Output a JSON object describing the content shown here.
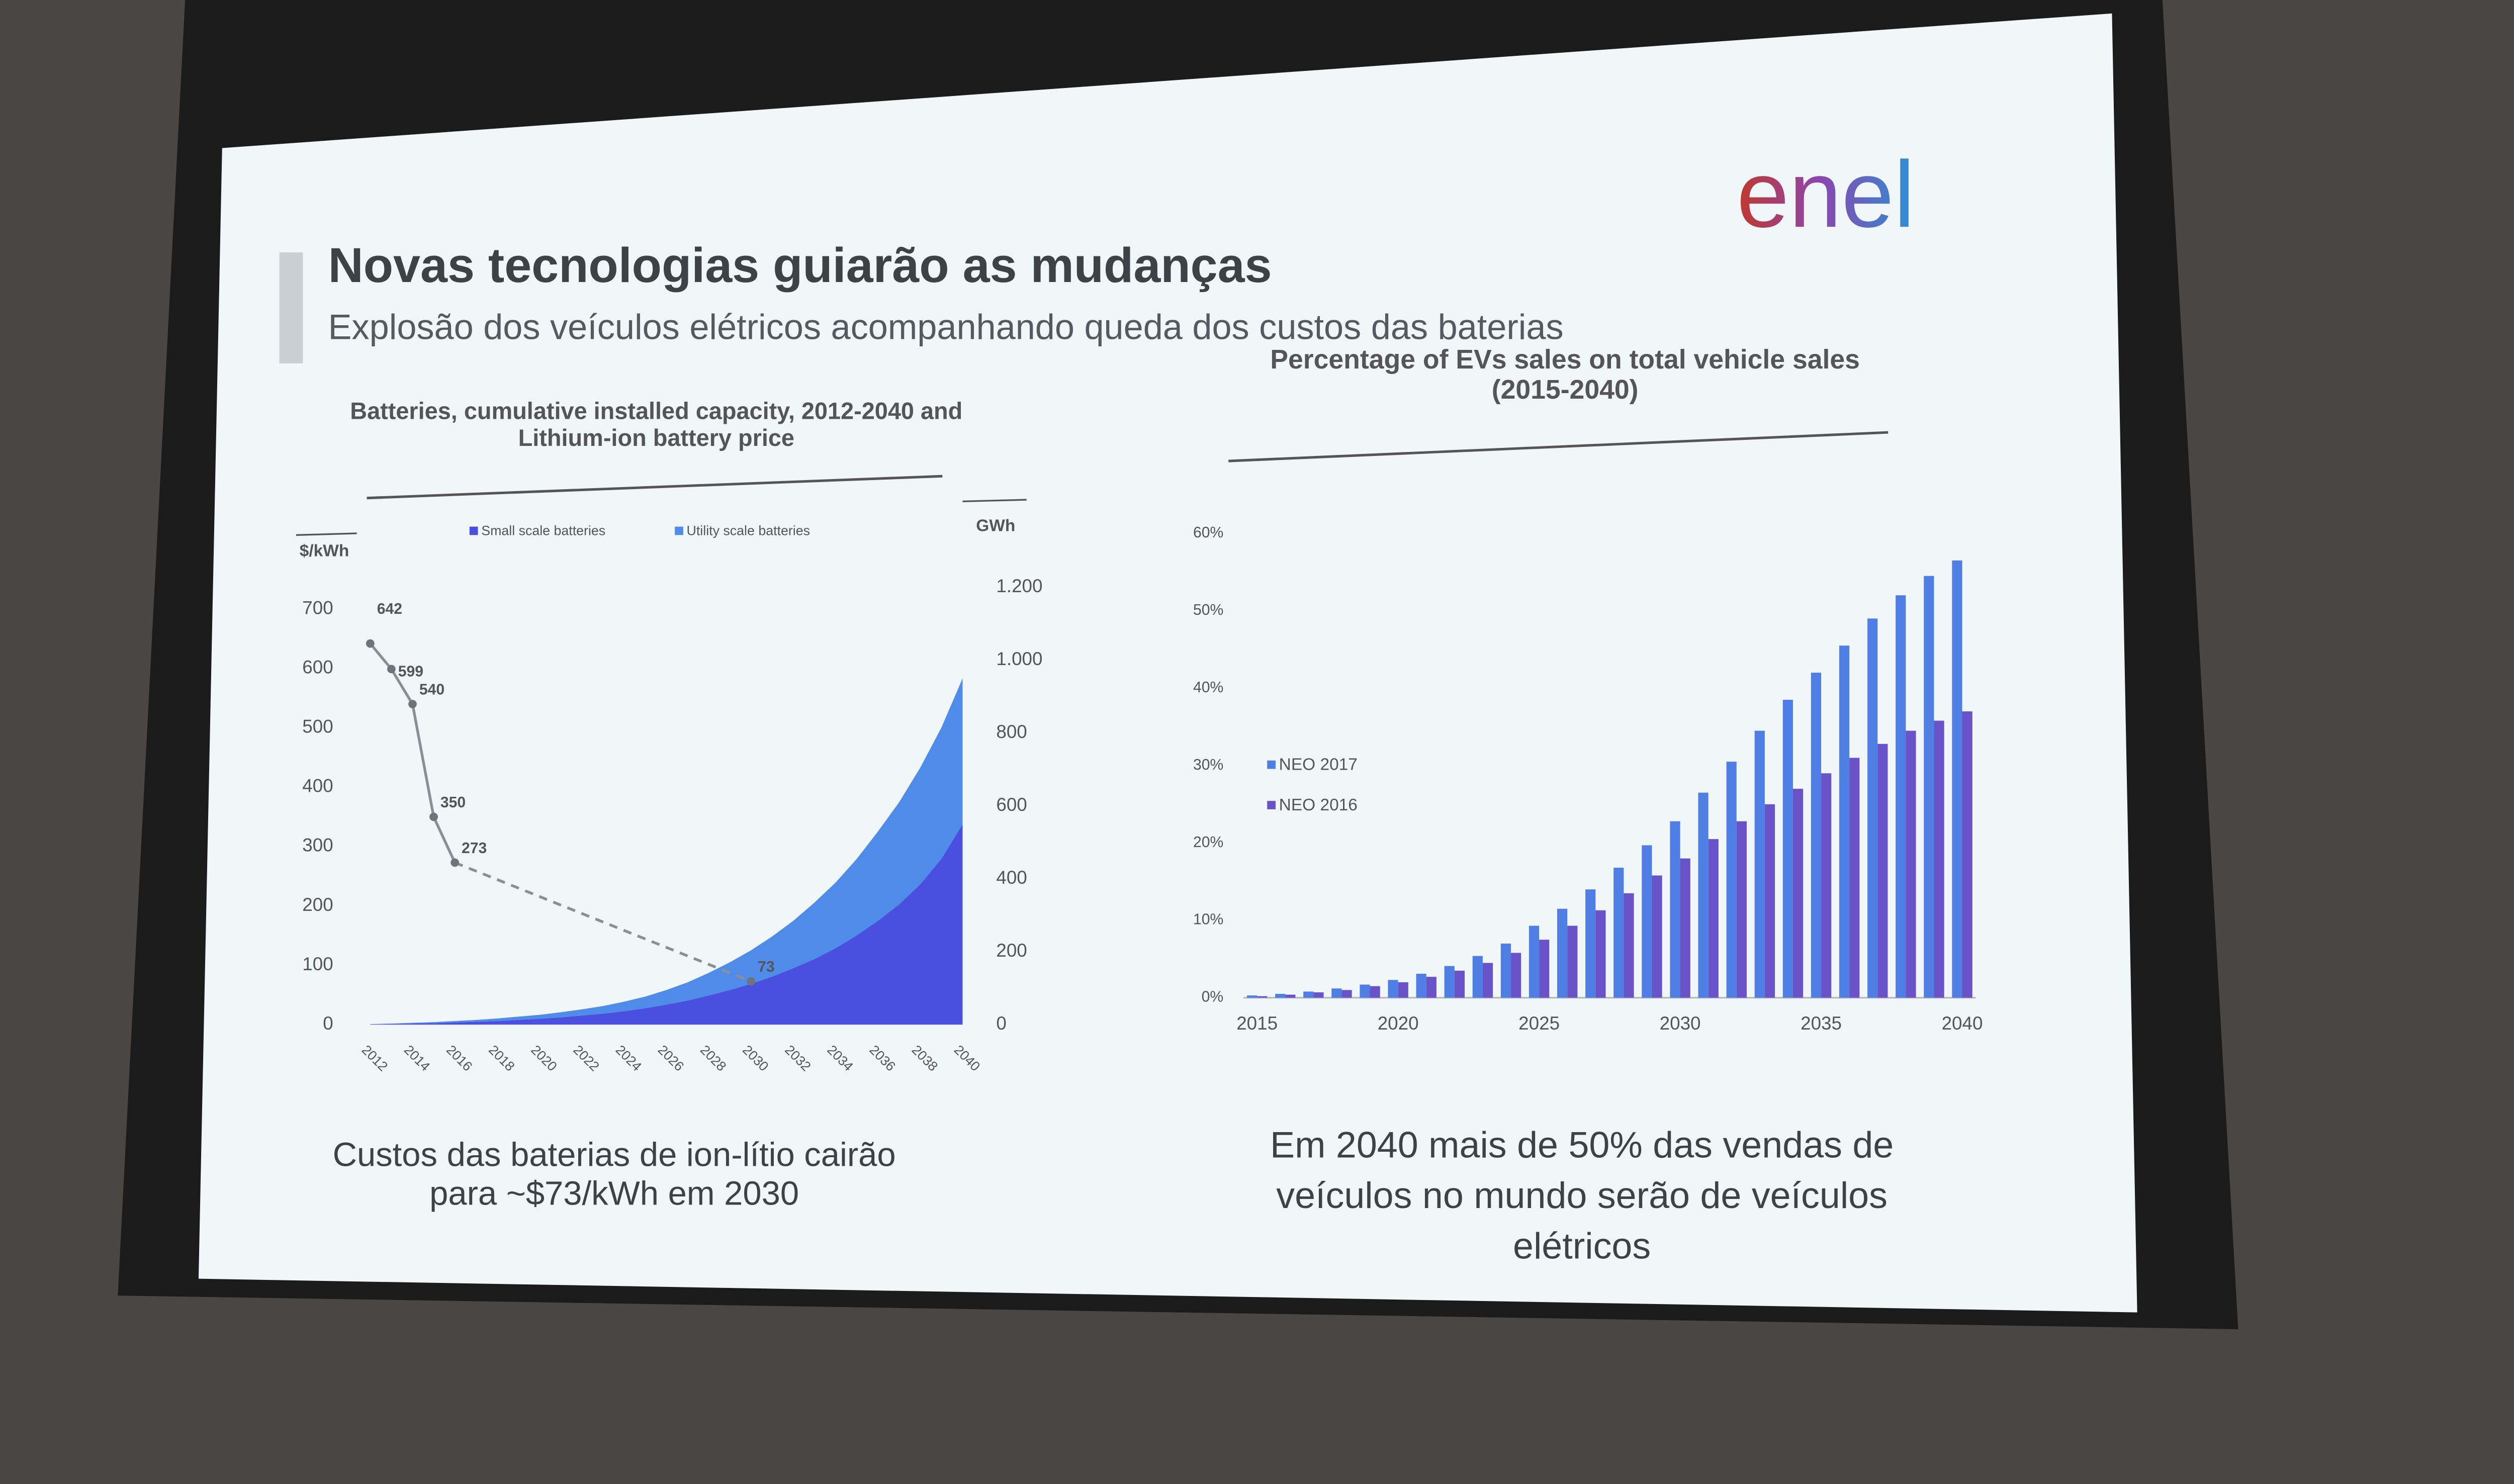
{
  "header": {
    "title": "Novas tecnologias guiarão as mudanças",
    "subtitle": "Explosão dos veículos elétricos acompanhando queda dos custos das baterias",
    "logo": "enel"
  },
  "captions": [
    "Custos das baterias de ion-lítio cairão para ~$73/kWh em 2030",
    "Em 2040 mais de 50% das vendas de veículos no mundo serão de veículos elétricos"
  ],
  "chart_data": [
    {
      "type": "area",
      "title": "Batteries, cumulative installed capacity, 2012-2040 and Lithium-ion battery price",
      "y_label": "$/kWh",
      "y2_label": "GWh",
      "legend": "top",
      "stacked": true,
      "x": [
        2012,
        2013,
        2014,
        2015,
        2016,
        2017,
        2018,
        2019,
        2020,
        2021,
        2022,
        2023,
        2024,
        2025,
        2026,
        2027,
        2028,
        2029,
        2030,
        2031,
        2032,
        2033,
        2034,
        2035,
        2036,
        2037,
        2038,
        2039,
        2040
      ],
      "xlim": [
        2012,
        2040
      ],
      "xticks": [
        2012,
        2014,
        2016,
        2018,
        2020,
        2022,
        2024,
        2026,
        2028,
        2030,
        2032,
        2034,
        2036,
        2038,
        2040
      ],
      "ylim": [
        0,
        700
      ],
      "yticks": [
        0,
        100,
        200,
        300,
        400,
        500,
        600,
        700
      ],
      "y2lim": [
        0,
        1200
      ],
      "y2ticks": [
        0,
        200,
        400,
        600,
        800,
        {
          "value": 1000,
          "label": "1.000"
        },
        {
          "value": 1200,
          "label": "1.200"
        }
      ],
      "series": [
        {
          "name": "Small scale batteries",
          "color": "#4a4fe0",
          "axis": "y2",
          "values": [
            1,
            2,
            3,
            4,
            6,
            8,
            10,
            13,
            16,
            20,
            25,
            30,
            37,
            45,
            55,
            66,
            80,
            95,
            112,
            132,
            155,
            180,
            210,
            245,
            285,
            330,
            385,
            455,
            550
          ]
        },
        {
          "name": "Utility scale batteries",
          "color": "#4f8be8",
          "axis": "y2",
          "values": [
            0.5,
            1,
            2,
            3,
            4,
            5,
            7,
            9,
            11,
            14,
            17,
            21,
            26,
            32,
            40,
            50,
            62,
            76,
            92,
            110,
            130,
            155,
            180,
            210,
            245,
            280,
            320,
            360,
            400
          ]
        }
      ],
      "price": {
        "color": "#8a8f96",
        "axis": "y",
        "x": [
          2012,
          2013,
          2014,
          2015,
          2016,
          2030
        ],
        "values": [
          642,
          599,
          540,
          350,
          273,
          73
        ]
      }
    },
    {
      "type": "bar",
      "title": "Percentage of EVs sales on total vehicle sales (2015-2040)",
      "legend": "left",
      "x": [
        2015,
        2016,
        2017,
        2018,
        2019,
        2020,
        2021,
        2022,
        2023,
        2024,
        2025,
        2026,
        2027,
        2028,
        2029,
        2030,
        2031,
        2032,
        2033,
        2034,
        2035,
        2036,
        2037,
        2038,
        2039,
        2040
      ],
      "xlim": [
        2015,
        2040
      ],
      "xticks": [
        2015,
        2020,
        2025,
        2030,
        2035,
        2040
      ],
      "ylim": [
        0,
        60
      ],
      "yticks": [
        {
          "value": 0,
          "label": "0%"
        },
        {
          "value": 10,
          "label": "10%"
        },
        {
          "value": 20,
          "label": "20%"
        },
        {
          "value": 30,
          "label": "30%"
        },
        {
          "value": 40,
          "label": "40%"
        },
        {
          "value": 50,
          "label": "50%"
        },
        {
          "value": 60,
          "label": "60%"
        }
      ],
      "series": [
        {
          "name": "NEO 2017",
          "color": "#4f7fe4",
          "values": [
            0.3,
            0.5,
            0.8,
            1.2,
            1.7,
            2.3,
            3.1,
            4.1,
            5.4,
            7,
            9.3,
            11.5,
            14,
            16.8,
            19.7,
            22.8,
            26.5,
            30.5,
            34.5,
            38.5,
            42,
            45.5,
            49,
            52,
            54.5,
            56.5
          ]
        },
        {
          "name": "NEO 2016",
          "color": "#6a52c8",
          "values": [
            0.2,
            0.4,
            0.7,
            1,
            1.5,
            2,
            2.7,
            3.5,
            4.5,
            5.8,
            7.5,
            9.3,
            11.3,
            13.5,
            15.8,
            18,
            20.5,
            22.8,
            25,
            27,
            29,
            31,
            32.8,
            34.5,
            35.8,
            37
          ]
        }
      ]
    }
  ]
}
